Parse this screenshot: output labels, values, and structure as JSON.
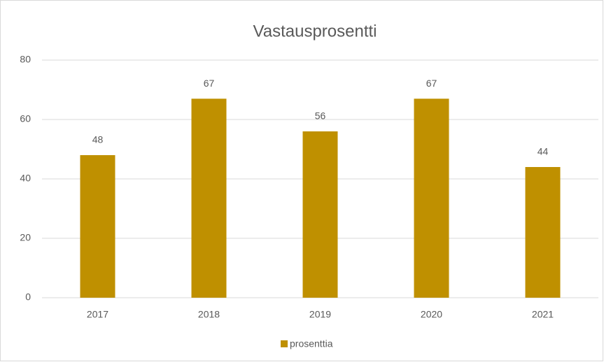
{
  "chart_data": {
    "type": "bar",
    "title": "Vastausprosentti",
    "categories": [
      "2017",
      "2018",
      "2019",
      "2020",
      "2021"
    ],
    "series": [
      {
        "name": "prosenttia",
        "color": "#bf9000",
        "values": [
          48,
          67,
          56,
          67,
          44
        ]
      }
    ],
    "ylim": [
      0,
      80
    ],
    "yticks": [
      0,
      20,
      40,
      60,
      80
    ],
    "grid": true,
    "legend": "bottom"
  }
}
